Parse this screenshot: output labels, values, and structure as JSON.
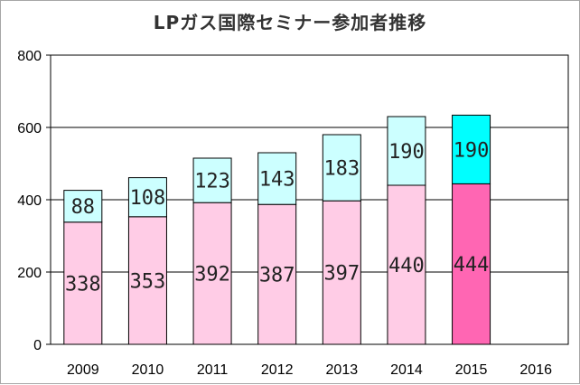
{
  "chart_data": {
    "type": "bar",
    "stacked": true,
    "title": "LPガス国際セミナー参加者推移",
    "xlabel": "",
    "ylabel": "",
    "categories": [
      "2009",
      "2010",
      "2011",
      "2012",
      "2013",
      "2014",
      "2015",
      "2016"
    ],
    "series": [
      {
        "values": [
          338,
          353,
          392,
          387,
          397,
          440,
          444,
          null
        ],
        "color": "#ffcce6",
        "highlight_color": "#ff66b3"
      },
      {
        "values": [
          88,
          108,
          123,
          143,
          183,
          190,
          190,
          null
        ],
        "color": "#ccffff",
        "highlight_color": "#00ffff"
      }
    ],
    "highlight_category": "2015",
    "ylim": [
      0,
      800
    ],
    "yticks": [
      0,
      200,
      400,
      600,
      800
    ],
    "grid": true,
    "legend": "none"
  }
}
